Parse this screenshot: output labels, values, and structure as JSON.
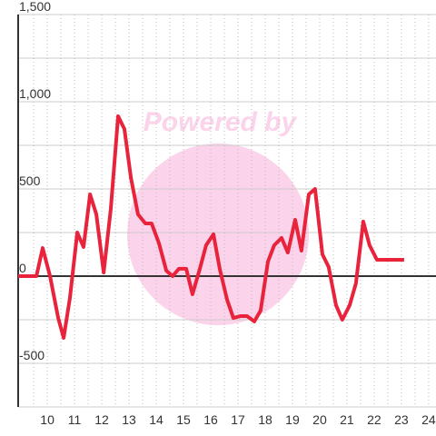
{
  "chart_data": {
    "type": "line",
    "watermark": "Powered by",
    "x": [
      8.93,
      9.6,
      9.83,
      10.1,
      10.4,
      10.6,
      10.83,
      11.1,
      11.33,
      11.57,
      11.8,
      12.07,
      12.33,
      12.6,
      12.83,
      13.07,
      13.33,
      13.6,
      13.83,
      14.1,
      14.37,
      14.6,
      14.83,
      15.1,
      15.33,
      15.6,
      15.83,
      16.1,
      16.33,
      16.6,
      16.83,
      17.1,
      17.33,
      17.6,
      17.83,
      18.1,
      18.33,
      18.6,
      18.83,
      19.1,
      19.33,
      19.6,
      19.83,
      20.1,
      20.33,
      20.6,
      20.83,
      21.1,
      21.33,
      21.6,
      21.83,
      22.1,
      23.1
    ],
    "series": [
      {
        "color": "#e8233b",
        "values": [
          0,
          0,
          161,
          0,
          -240,
          -354,
          -125,
          250,
          167,
          469,
          354,
          21,
          385,
          917,
          844,
          563,
          354,
          302,
          302,
          188,
          31,
          0,
          42,
          42,
          -104,
          42,
          177,
          240,
          42,
          -135,
          -240,
          -229,
          -229,
          -260,
          -198,
          83,
          177,
          219,
          135,
          323,
          146,
          469,
          500,
          125,
          52,
          -167,
          -250,
          -167,
          -42,
          313,
          177,
          94,
          94
        ]
      }
    ],
    "xlim": [
      8.93,
      24.27
    ],
    "ylim": [
      -750,
      1500
    ],
    "xticks": [
      10,
      11,
      12,
      13,
      14,
      15,
      16,
      17,
      18,
      19,
      20,
      21,
      22,
      23,
      24
    ],
    "x_minor_ticks": [
      9.5,
      10.5,
      11.5,
      12.5,
      13.5,
      14.5,
      15.5,
      16.5,
      17.5,
      18.5,
      19.5,
      20.5,
      21.5,
      22.5,
      23.5
    ],
    "yticks": [
      {
        "value": -500,
        "label": "-500"
      },
      0,
      500,
      {
        "value": 1000,
        "label": "1,000"
      },
      {
        "value": 1500,
        "label": "1,500"
      }
    ],
    "y_minor_ticks": [
      -750,
      -250,
      250,
      750,
      1250
    ],
    "grid": true
  }
}
